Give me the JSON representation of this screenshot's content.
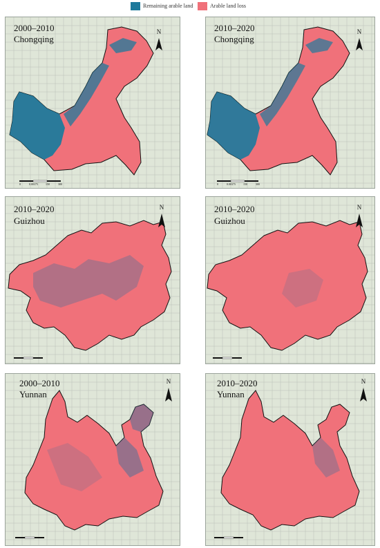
{
  "legend": {
    "remaining": {
      "label": "Remaining arable land",
      "color": "#1f7a9c"
    },
    "loss": {
      "label": "Arable land loss",
      "color": "#f0717a"
    }
  },
  "north_label": "N",
  "panels": [
    {
      "period": "2000–2010",
      "region": "Chongqing",
      "scale": [
        "0",
        "0.00375",
        "150",
        "300"
      ]
    },
    {
      "period": "2010–2020",
      "region": "Chongqing",
      "scale": [
        "0",
        "0.00375",
        "150",
        "300"
      ]
    },
    {
      "period": "2010–2020",
      "region": "Guizhou",
      "scale": []
    },
    {
      "period": "2010–2020",
      "region": "Guizhou",
      "scale": []
    },
    {
      "period": "2000–2010",
      "region": "Yunnan",
      "scale": []
    },
    {
      "period": "2010–2020",
      "region": "Yunnan",
      "scale": []
    }
  ]
}
